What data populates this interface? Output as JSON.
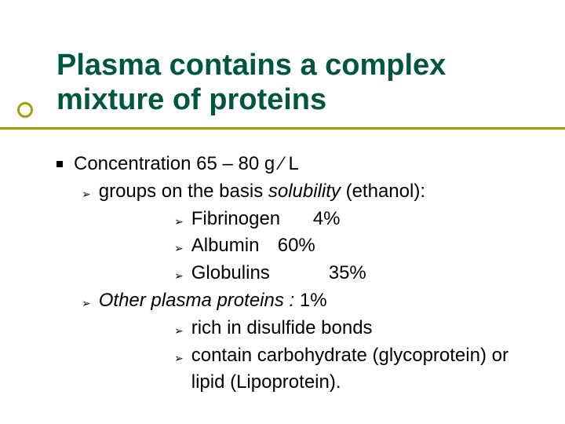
{
  "accent_color": "#a79e00",
  "title_color": "#00563f",
  "text_color": "#000000",
  "title": "Plasma contains a complex mixture of proteins",
  "line1": "Concentration 65 – 80 g ∕ L",
  "line2_a": "groups  on the basis ",
  "line2_b": "solubility ",
  "line2_c": "(ethanol):",
  "protein1_name": "Fibrinogen",
  "protein1_pct": "4%",
  "protein2_name": "Albumin",
  "protein2_pct": "60%",
  "protein3_name": "Globulins",
  "protein3_pct": "35%",
  "line6_a": "Other plasma proteins : ",
  "line6_b": "1%",
  "line7": "rich in disulfide bonds",
  "line8": "contain carbohydrate (glycoprotein) or lipid (Lipoprotein)."
}
